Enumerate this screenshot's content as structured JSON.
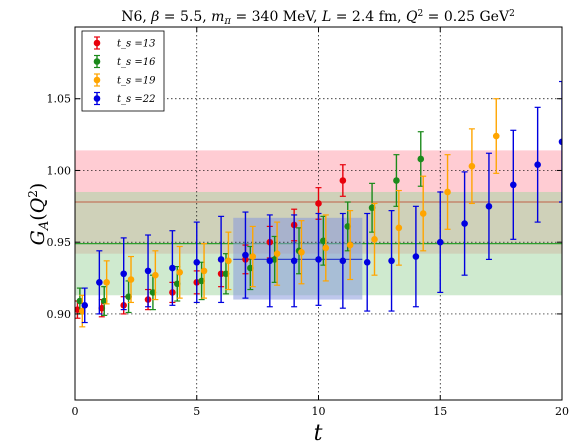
{
  "chart_data": {
    "type": "scatter",
    "title": "N6, β = 5.5, m_π = 340 MeV, L = 2.4 fm, Q² = 0.25 GeV²",
    "xlabel": "t",
    "ylabel": "G_A(Q²)",
    "xlim": [
      0,
      20
    ],
    "ylim": [
      0.84,
      1.1
    ],
    "xticks": [
      "0",
      "5",
      "10",
      "15",
      "20"
    ],
    "yticks": [
      "0.90",
      "0.95",
      "1.00",
      "1.05"
    ],
    "ytick_values": [
      0.9,
      0.95,
      1.0,
      1.05
    ],
    "xtick_values": [
      0,
      5,
      10,
      15,
      20
    ],
    "grid": true,
    "legend_position": "top-left",
    "bands": [
      {
        "color": "#ff9aa8",
        "center": 0.978,
        "low": 0.942,
        "high": 1.014,
        "line_color": "#e41a1c"
      },
      {
        "color": "#9fd69f",
        "center": 0.949,
        "low": 0.913,
        "high": 0.985,
        "line_color": "#2ca02c"
      },
      {
        "color": "#8899dd",
        "x_from": 6.5,
        "x_to": 11.8,
        "center": 0.938,
        "low": 0.91,
        "high": 0.967,
        "line_color": "#3344cc"
      }
    ],
    "series": [
      {
        "name": "t_s =13",
        "color": "#e8000b",
        "points": [
          {
            "x": 0.1,
            "y": 0.903,
            "err": 0.006
          },
          {
            "x": 1.1,
            "y": 0.904,
            "err": 0.006
          },
          {
            "x": 2.0,
            "y": 0.906,
            "err": 0.006
          },
          {
            "x": 3.0,
            "y": 0.91,
            "err": 0.007
          },
          {
            "x": 4.0,
            "y": 0.915,
            "err": 0.007
          },
          {
            "x": 5.0,
            "y": 0.922,
            "err": 0.008
          },
          {
            "x": 6.0,
            "y": 0.928,
            "err": 0.009
          },
          {
            "x": 7.0,
            "y": 0.938,
            "err": 0.01
          },
          {
            "x": 8.0,
            "y": 0.95,
            "err": 0.011
          },
          {
            "x": 9.0,
            "y": 0.962,
            "err": 0.011
          },
          {
            "x": 10.0,
            "y": 0.977,
            "err": 0.011
          },
          {
            "x": 11.0,
            "y": 0.993,
            "err": 0.011
          }
        ]
      },
      {
        "name": "t_s =16",
        "color": "#1b8a1b",
        "points": [
          {
            "x": 0.2,
            "y": 0.909,
            "err": 0.009
          },
          {
            "x": 1.2,
            "y": 0.909,
            "err": 0.01
          },
          {
            "x": 2.2,
            "y": 0.912,
            "err": 0.011
          },
          {
            "x": 3.2,
            "y": 0.915,
            "err": 0.012
          },
          {
            "x": 4.2,
            "y": 0.921,
            "err": 0.012
          },
          {
            "x": 5.2,
            "y": 0.923,
            "err": 0.013
          },
          {
            "x": 6.2,
            "y": 0.928,
            "err": 0.014
          },
          {
            "x": 7.2,
            "y": 0.932,
            "err": 0.015
          },
          {
            "x": 8.2,
            "y": 0.938,
            "err": 0.016
          },
          {
            "x": 9.2,
            "y": 0.944,
            "err": 0.016
          },
          {
            "x": 10.2,
            "y": 0.951,
            "err": 0.017
          },
          {
            "x": 11.2,
            "y": 0.961,
            "err": 0.017
          },
          {
            "x": 12.2,
            "y": 0.974,
            "err": 0.017
          },
          {
            "x": 13.2,
            "y": 0.993,
            "err": 0.018
          },
          {
            "x": 14.2,
            "y": 1.008,
            "err": 0.019
          }
        ]
      },
      {
        "name": "t_s =19",
        "color": "#ffa500",
        "points": [
          {
            "x": 0.3,
            "y": 0.902,
            "err": 0.011
          },
          {
            "x": 1.3,
            "y": 0.922,
            "err": 0.015
          },
          {
            "x": 2.3,
            "y": 0.924,
            "err": 0.016
          },
          {
            "x": 3.3,
            "y": 0.927,
            "err": 0.017
          },
          {
            "x": 4.3,
            "y": 0.929,
            "err": 0.018
          },
          {
            "x": 5.3,
            "y": 0.93,
            "err": 0.019
          },
          {
            "x": 6.3,
            "y": 0.937,
            "err": 0.02
          },
          {
            "x": 7.3,
            "y": 0.94,
            "err": 0.021
          },
          {
            "x": 8.3,
            "y": 0.942,
            "err": 0.022
          },
          {
            "x": 9.3,
            "y": 0.943,
            "err": 0.022
          },
          {
            "x": 10.3,
            "y": 0.946,
            "err": 0.023
          },
          {
            "x": 11.3,
            "y": 0.948,
            "err": 0.024
          },
          {
            "x": 12.3,
            "y": 0.952,
            "err": 0.025
          },
          {
            "x": 13.3,
            "y": 0.96,
            "err": 0.026
          },
          {
            "x": 14.3,
            "y": 0.97,
            "err": 0.026
          },
          {
            "x": 15.3,
            "y": 0.985,
            "err": 0.026
          },
          {
            "x": 16.3,
            "y": 1.003,
            "err": 0.026
          },
          {
            "x": 17.3,
            "y": 1.024,
            "err": 0.026
          }
        ]
      },
      {
        "name": "t_s =22",
        "color": "#0000e0",
        "points": [
          {
            "x": 0.4,
            "y": 0.906,
            "err": 0.012
          },
          {
            "x": 1.0,
            "y": 0.922,
            "err": 0.022
          },
          {
            "x": 2.0,
            "y": 0.928,
            "err": 0.025
          },
          {
            "x": 3.0,
            "y": 0.93,
            "err": 0.025
          },
          {
            "x": 4.0,
            "y": 0.932,
            "err": 0.026
          },
          {
            "x": 5.0,
            "y": 0.936,
            "err": 0.028
          },
          {
            "x": 6.0,
            "y": 0.938,
            "err": 0.03
          },
          {
            "x": 7.0,
            "y": 0.941,
            "err": 0.03
          },
          {
            "x": 8.0,
            "y": 0.937,
            "err": 0.032
          },
          {
            "x": 9.0,
            "y": 0.937,
            "err": 0.032
          },
          {
            "x": 10.0,
            "y": 0.938,
            "err": 0.032
          },
          {
            "x": 11.0,
            "y": 0.937,
            "err": 0.033
          },
          {
            "x": 12.0,
            "y": 0.936,
            "err": 0.034
          },
          {
            "x": 13.0,
            "y": 0.937,
            "err": 0.035
          },
          {
            "x": 14.0,
            "y": 0.94,
            "err": 0.035
          },
          {
            "x": 15.0,
            "y": 0.95,
            "err": 0.035
          },
          {
            "x": 16.0,
            "y": 0.963,
            "err": 0.036
          },
          {
            "x": 17.0,
            "y": 0.975,
            "err": 0.037
          },
          {
            "x": 18.0,
            "y": 0.99,
            "err": 0.038
          },
          {
            "x": 19.0,
            "y": 1.004,
            "err": 0.04
          },
          {
            "x": 20.0,
            "y": 1.02,
            "err": 0.042
          }
        ]
      }
    ]
  }
}
